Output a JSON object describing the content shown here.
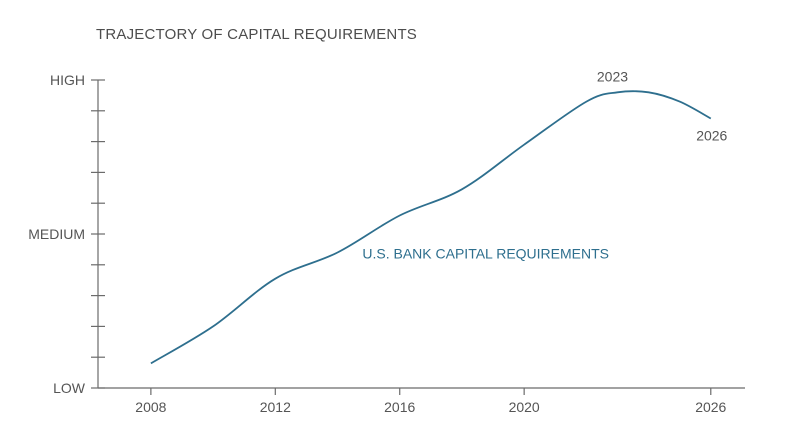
{
  "chart_data": {
    "type": "line",
    "title": "TRAJECTORY OF CAPITAL REQUIREMENTS",
    "xlabel": "",
    "ylabel": "",
    "xlim": [
      2006.3,
      2027.1
    ],
    "ylim": [
      0,
      1
    ],
    "x_ticks": [
      2008,
      2012,
      2016,
      2020,
      2026
    ],
    "y_ticks": [
      {
        "value": 0,
        "label": "LOW"
      },
      {
        "value": 0.5,
        "label": "MEDIUM"
      },
      {
        "value": 1,
        "label": "HIGH"
      }
    ],
    "y_minor_step": 0.1,
    "grid": false,
    "series": [
      {
        "name": "U.S. BANK CAPITAL REQUIREMENTS",
        "color": "#2e6f8e",
        "x": [
          2008,
          2010,
          2012,
          2014,
          2016,
          2018,
          2020,
          2022,
          2023,
          2024,
          2025,
          2026
        ],
        "y": [
          0.08,
          0.2,
          0.355,
          0.44,
          0.56,
          0.645,
          0.79,
          0.93,
          0.96,
          0.96,
          0.93,
          0.875
        ]
      }
    ],
    "annotations": [
      {
        "text": "2023",
        "x": 2023,
        "y": 0.96
      },
      {
        "text": "2026",
        "x": 2026,
        "y": 0.875
      }
    ]
  }
}
